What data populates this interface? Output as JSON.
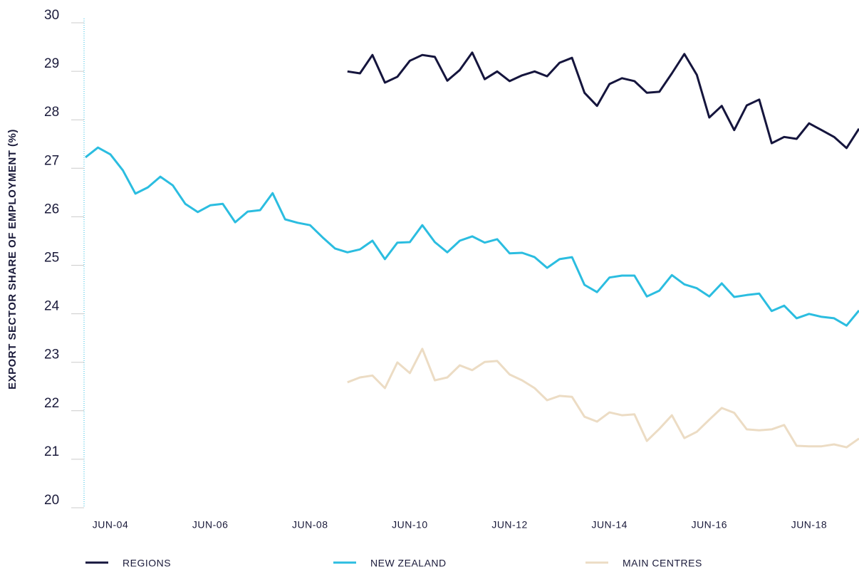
{
  "chart_data": {
    "type": "line",
    "y_label": "EXPORT SECTOR SHARE OF EMPLOYMENT (%)",
    "categories": [
      null,
      null,
      "JUN-04",
      null,
      null,
      null,
      null,
      null,
      null,
      null,
      "JUN-06",
      null,
      null,
      null,
      null,
      null,
      null,
      null,
      "JUN-08",
      null,
      null,
      null,
      null,
      null,
      null,
      null,
      "JUN-10",
      null,
      null,
      null,
      null,
      null,
      null,
      null,
      "JUN-12",
      null,
      null,
      null,
      null,
      null,
      null,
      null,
      "JUN-14",
      null,
      null,
      null,
      null,
      null,
      null,
      null,
      "JUN-16",
      null,
      null,
      null,
      null,
      null,
      null,
      null,
      "JUN-18",
      null,
      null,
      null,
      null
    ],
    "ylim": [
      20,
      30
    ],
    "yticks": [
      20,
      21,
      22,
      23,
      24,
      25,
      26,
      27,
      28,
      29,
      30
    ],
    "series": [
      {
        "name": "REGIONS",
        "color": "#15153d",
        "values": [
          null,
          null,
          null,
          null,
          null,
          null,
          null,
          null,
          null,
          null,
          null,
          null,
          null,
          null,
          null,
          null,
          null,
          null,
          null,
          null,
          null,
          28.85,
          28.81,
          29.19,
          28.62,
          28.74,
          29.07,
          29.19,
          29.15,
          28.66,
          28.88,
          29.24,
          28.69,
          28.85,
          28.65,
          28.77,
          28.85,
          28.75,
          29.03,
          29.13,
          28.41,
          28.14,
          28.59,
          28.71,
          28.65,
          28.41,
          28.43,
          28.81,
          29.21,
          28.78,
          27.9,
          28.14,
          27.64,
          28.15,
          28.27,
          27.37,
          27.5,
          27.46,
          27.78,
          27.64,
          27.5,
          27.27,
          27.67
        ]
      },
      {
        "name": "NEW ZEALAND",
        "color": "#2bbde0",
        "values": [
          27.08,
          27.28,
          27.14,
          26.81,
          26.33,
          26.46,
          26.68,
          26.5,
          26.12,
          25.95,
          26.09,
          26.12,
          25.74,
          25.96,
          25.99,
          26.34,
          25.8,
          25.73,
          25.68,
          25.43,
          25.2,
          25.12,
          25.18,
          25.36,
          24.98,
          25.32,
          25.33,
          25.68,
          25.33,
          25.12,
          25.36,
          25.45,
          25.32,
          25.39,
          25.1,
          25.11,
          25.02,
          24.8,
          24.98,
          25.02,
          24.45,
          24.3,
          24.6,
          24.64,
          24.64,
          24.21,
          24.33,
          24.65,
          24.46,
          24.38,
          24.21,
          24.48,
          24.2,
          24.24,
          24.27,
          23.91,
          24.02,
          23.76,
          23.85,
          23.79,
          23.76,
          23.61,
          23.92
        ]
      },
      {
        "name": "MAIN CENTRES",
        "color": "#ecdcc4",
        "values": [
          null,
          null,
          null,
          null,
          null,
          null,
          null,
          null,
          null,
          null,
          null,
          null,
          null,
          null,
          null,
          null,
          null,
          null,
          null,
          null,
          null,
          22.44,
          22.54,
          22.58,
          22.32,
          22.85,
          22.63,
          23.13,
          22.48,
          22.54,
          22.79,
          22.69,
          22.86,
          22.88,
          22.6,
          22.48,
          22.32,
          22.07,
          22.16,
          22.14,
          21.73,
          21.63,
          21.82,
          21.76,
          21.78,
          21.23,
          21.48,
          21.76,
          21.29,
          21.42,
          21.67,
          21.91,
          21.81,
          21.47,
          21.45,
          21.47,
          21.56,
          21.13,
          21.12,
          21.12,
          21.16,
          21.1,
          21.28
        ]
      }
    ]
  }
}
